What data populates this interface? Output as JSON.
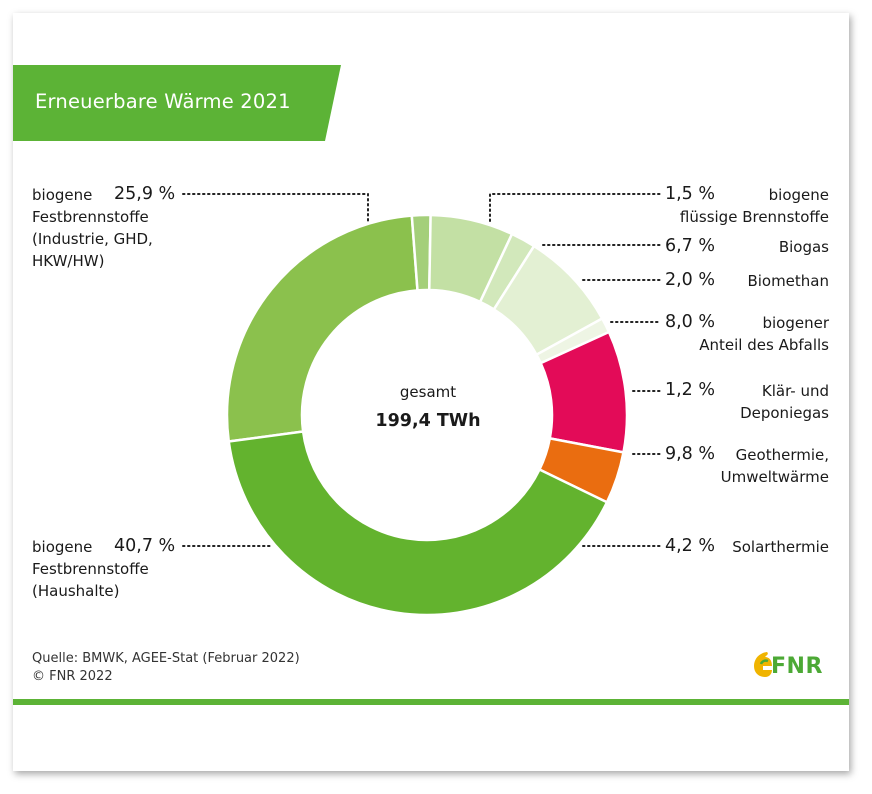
{
  "title": "Erneuerbare Wärme 2021",
  "colors": {
    "brand_green": "#5cb336",
    "fest_industrie": "#8bc14d",
    "fluessig": "#a4cf7a",
    "biogas": "#c3e0a4",
    "biomethan": "#d2e8bb",
    "abfall": "#e3f0d3",
    "deponiegas": "#eef5e4",
    "geothermie": "#e30b58",
    "solarthermie": "#ea6d10",
    "fest_haushalte": "#63b32e"
  },
  "center": {
    "label": "gesamt",
    "value": "199,4 TWh"
  },
  "chart_data": {
    "type": "pie",
    "title": "Erneuerbare Wärme 2021",
    "total": "199,4 TWh",
    "unit": "%",
    "slices": [
      {
        "key": "fest_industrie",
        "pct": 25.9,
        "pct_label": "25,9 %",
        "label_lines": [
          "biogene",
          "Festbrennstoffe",
          "(Industrie, GHD,",
          "HKW/HW)"
        ]
      },
      {
        "key": "fluessig",
        "pct": 1.5,
        "pct_label": "1,5 %",
        "label_lines": [
          "biogene",
          "flüssige Brennstoffe"
        ]
      },
      {
        "key": "biogas",
        "pct": 6.7,
        "pct_label": "6,7 %",
        "label_lines": [
          "Biogas"
        ]
      },
      {
        "key": "biomethan",
        "pct": 2.0,
        "pct_label": "2,0 %",
        "label_lines": [
          "Biomethan"
        ]
      },
      {
        "key": "abfall",
        "pct": 8.0,
        "pct_label": "8,0 %",
        "label_lines": [
          "biogener",
          "Anteil des Abfalls"
        ]
      },
      {
        "key": "deponiegas",
        "pct": 1.2,
        "pct_label": "1,2 %",
        "label_lines": [
          "Klär- und",
          "Deponiegas"
        ]
      },
      {
        "key": "geothermie",
        "pct": 9.8,
        "pct_label": "9,8 %",
        "label_lines": [
          "Geothermie,",
          "Umweltwärme"
        ]
      },
      {
        "key": "solarthermie",
        "pct": 4.2,
        "pct_label": "4,2 %",
        "label_lines": [
          "Solarthermie"
        ]
      },
      {
        "key": "fest_haushalte",
        "pct": 40.7,
        "pct_label": "40,7 %",
        "label_lines": [
          "biogene",
          "Festbrennstoffe",
          "(Haushalte)"
        ]
      }
    ]
  },
  "source": {
    "line1": "Quelle: BMWK, AGEE-Stat (Februar 2022)",
    "line2": "© FNR 2022"
  },
  "logo": {
    "text": "FNR"
  }
}
